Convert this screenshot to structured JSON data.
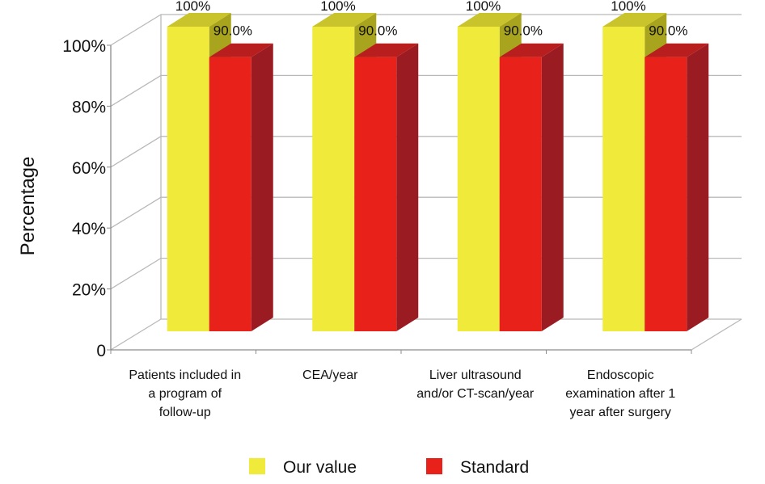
{
  "chart_data": {
    "type": "bar",
    "title": "",
    "xlabel": "",
    "ylabel": "Percentage",
    "ylim": [
      0,
      100
    ],
    "yticks": [
      {
        "value": 0,
        "label": "0"
      },
      {
        "value": 20,
        "label": "20%"
      },
      {
        "value": 40,
        "label": "40%"
      },
      {
        "value": 60,
        "label": "60%"
      },
      {
        "value": 80,
        "label": "80%"
      },
      {
        "value": 100,
        "label": "100%"
      }
    ],
    "categories": [
      [
        "Patients included in",
        "a program of",
        "follow-up"
      ],
      [
        "CEA/year"
      ],
      [
        "Liver ultrasound",
        "and/or CT-scan/year"
      ],
      [
        "Endoscopic",
        "examination after 1",
        "year after surgery"
      ]
    ],
    "series": [
      {
        "name": "Our value",
        "values": [
          100,
          100,
          100,
          100
        ],
        "labels": [
          "100%",
          "100%",
          "100%",
          "100%"
        ],
        "color": "#f0ea3a",
        "side_color": "#a8a41e",
        "top_color": "#c9c42c"
      },
      {
        "name": "Standard",
        "values": [
          90,
          90,
          90,
          90
        ],
        "labels": [
          "90.0%",
          "90.0%",
          "90.0%",
          "90.0%"
        ],
        "color": "#e8221a",
        "side_color": "#9a1c22",
        "top_color": "#b81e1e"
      }
    ],
    "grid": true,
    "legend_position": "bottom"
  }
}
